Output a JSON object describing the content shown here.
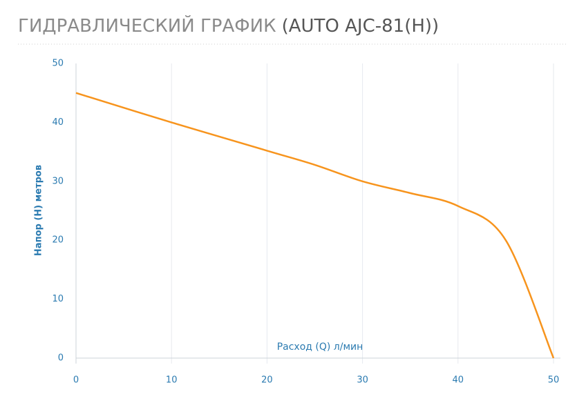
{
  "chart_data": {
    "type": "line",
    "title": "ГИДРАВЛИЧЕСКИЙ ГРАФИК",
    "model": "(AUTO AJC-81(H))",
    "x_label": "Расход (Q) л/мин",
    "y_label": "Напор (H) метров",
    "x": [
      0,
      10,
      20,
      25,
      30,
      35,
      40,
      45,
      50
    ],
    "series": [
      {
        "name": "AUTO AJC-81(H)",
        "color": "#f7941d",
        "values": [
          45,
          40,
          35.2,
          32.8,
          30,
          28,
          25.8,
          20,
          0
        ]
      }
    ],
    "xlim": [
      0,
      50
    ],
    "xticks": [
      0,
      10,
      20,
      30,
      40,
      50
    ],
    "ylim": [
      0,
      50
    ],
    "yticks": [
      0,
      10,
      20,
      30,
      40,
      50
    ],
    "grid": true
  }
}
